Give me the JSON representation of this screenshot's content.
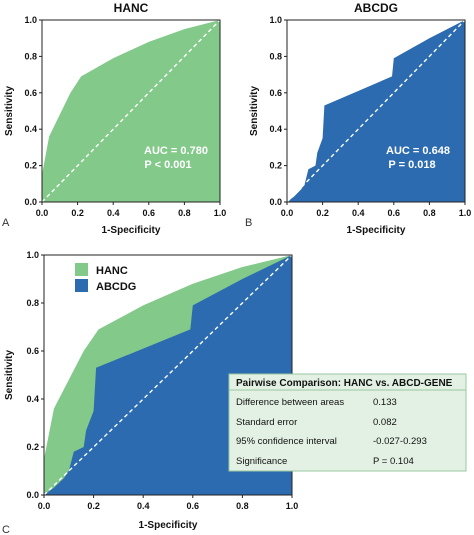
{
  "colors": {
    "hanc": "#82c98a",
    "abcdg": "#2c6bb0",
    "diagonal": "#ffffff",
    "table_bg": "#e3f1e4",
    "table_border": "#9ac89f"
  },
  "chart_data": [
    {
      "type": "area",
      "panel": "A",
      "title": "HANC",
      "xlabel": "1-Specificity",
      "ylabel": "Sensitivity",
      "xlim": [
        0,
        1
      ],
      "ylim": [
        0,
        1
      ],
      "ticks": [
        "0.0",
        "0.2",
        "0.4",
        "0.6",
        "0.8",
        "1.0"
      ],
      "series": [
        {
          "name": "HANC",
          "x": [
            0,
            0,
            0.04,
            0.08,
            0.16,
            0.22,
            0.4,
            0.6,
            0.8,
            1.0
          ],
          "y": [
            0,
            0.15,
            0.36,
            0.44,
            0.6,
            0.69,
            0.79,
            0.88,
            0.95,
            1.0
          ]
        }
      ],
      "annotations": [
        "AUC = 0.780",
        "P < 0.001"
      ]
    },
    {
      "type": "area",
      "panel": "B",
      "title": "ABCDG",
      "xlabel": "1-Specificity",
      "ylabel": "Sensitivity",
      "xlim": [
        0,
        1
      ],
      "ylim": [
        0,
        1
      ],
      "ticks": [
        "0.0",
        "0.2",
        "0.4",
        "0.6",
        "0.8",
        "1.0"
      ],
      "series": [
        {
          "name": "ABCDG",
          "x": [
            0,
            0.04,
            0.08,
            0.1,
            0.12,
            0.16,
            0.17,
            0.2,
            0.21,
            0.4,
            0.59,
            0.6,
            0.8,
            1.0
          ],
          "y": [
            0,
            0.03,
            0.07,
            0.1,
            0.18,
            0.2,
            0.27,
            0.35,
            0.53,
            0.61,
            0.69,
            0.79,
            0.9,
            1.0
          ]
        }
      ],
      "annotations": [
        "AUC = 0.648",
        "P = 0.018"
      ]
    },
    {
      "type": "area",
      "panel": "C",
      "xlabel": "1-Specificity",
      "ylabel": "Sensitivity",
      "xlim": [
        0,
        1
      ],
      "ylim": [
        0,
        1
      ],
      "ticks": [
        "0.0",
        "0.2",
        "0.4",
        "0.6",
        "0.8",
        "1.0"
      ],
      "legend": "top-left",
      "series": [
        {
          "name": "HANC",
          "x": [
            0,
            0,
            0.04,
            0.08,
            0.16,
            0.22,
            0.4,
            0.6,
            0.8,
            1.0
          ],
          "y": [
            0,
            0.15,
            0.36,
            0.44,
            0.6,
            0.69,
            0.79,
            0.88,
            0.95,
            1.0
          ]
        },
        {
          "name": "ABCDG",
          "x": [
            0,
            0.04,
            0.08,
            0.1,
            0.12,
            0.16,
            0.17,
            0.2,
            0.21,
            0.4,
            0.59,
            0.6,
            0.8,
            1.0
          ],
          "y": [
            0,
            0.03,
            0.07,
            0.1,
            0.18,
            0.2,
            0.27,
            0.35,
            0.53,
            0.61,
            0.69,
            0.79,
            0.9,
            1.0
          ]
        }
      ],
      "table": {
        "title": "Pairwise Comparison: HANC vs. ABCD-GENE",
        "rows": [
          {
            "label": "Difference between areas",
            "value": "0.133"
          },
          {
            "label": "Standard error",
            "value": "0.082"
          },
          {
            "label": "95% confidence interval",
            "value": "-0.027-0.293"
          },
          {
            "label": "Significance",
            "value": "P = 0.104"
          }
        ]
      }
    }
  ]
}
